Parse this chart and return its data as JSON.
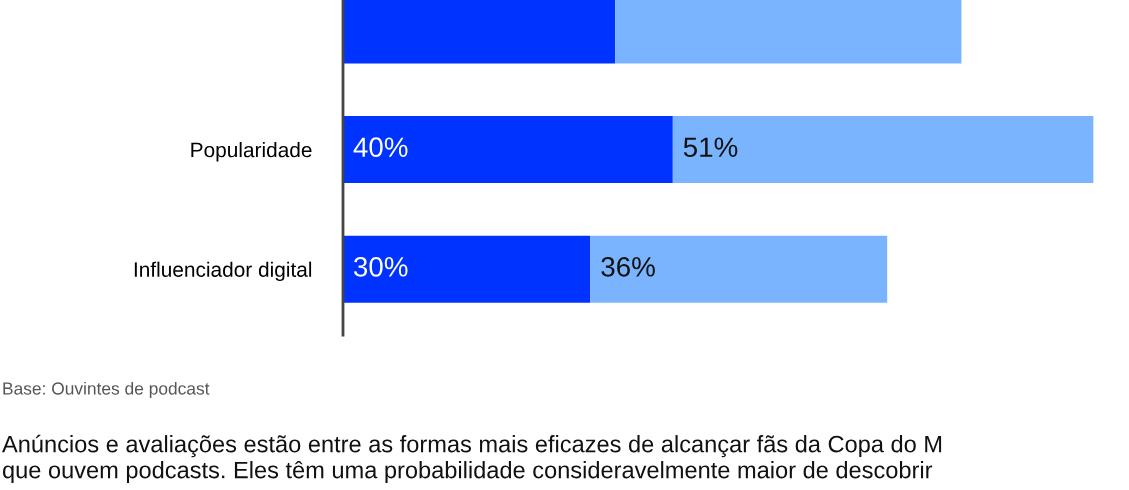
{
  "chart_data": {
    "type": "bar",
    "orientation": "horizontal",
    "stacked": true,
    "categories": [
      null,
      "Popularidade",
      "Influenciador digital"
    ],
    "series": [
      {
        "color": "#0033ff",
        "values": [
          33,
          40,
          30
        ],
        "value_labels": [
          null,
          "40%",
          "30%"
        ]
      },
      {
        "color": "#7ab4ff",
        "values": [
          42,
          51,
          36
        ],
        "value_labels": [
          null,
          "51%",
          "36%"
        ]
      }
    ],
    "tick_labels": "y",
    "grid": false,
    "legend": false,
    "annotations": [
      "Base: Ouvintes de podcast",
      "Anúncios e avaliações estão entre as formas mais eficazes de alcançar fãs da Copa do M",
      "que ouvem podcasts. Eles têm uma probabilidade consideravelmente maior de descobrir"
    ]
  }
}
